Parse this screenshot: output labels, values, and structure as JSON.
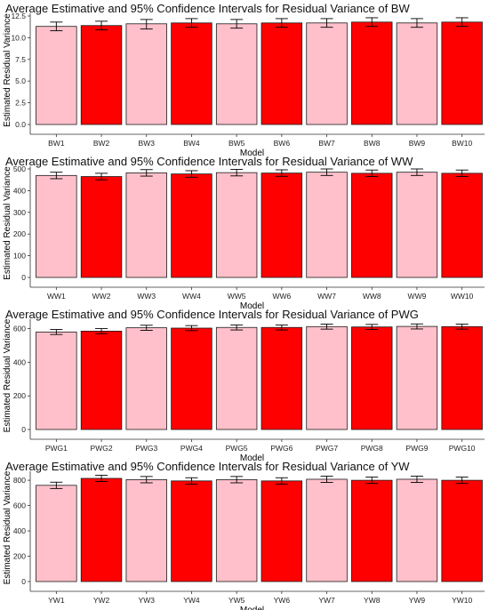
{
  "chart_data": [
    {
      "type": "bar",
      "title": "Average Estimative and 95% Confidence Intervals for Residual Variance of BW",
      "xlabel": "Model",
      "ylabel": "Estimated Residual Variance",
      "categories": [
        "BW1",
        "BW2",
        "BW3",
        "BW4",
        "BW5",
        "BW6",
        "BW7",
        "BW8",
        "BW9",
        "BW10"
      ],
      "values": [
        11.3,
        11.4,
        11.6,
        11.7,
        11.6,
        11.7,
        11.7,
        11.8,
        11.7,
        11.8
      ],
      "ci_lower": [
        10.8,
        10.9,
        11.0,
        11.2,
        11.1,
        11.2,
        11.2,
        11.3,
        11.2,
        11.3
      ],
      "ci_upper": [
        11.8,
        11.9,
        12.1,
        12.2,
        12.1,
        12.2,
        12.2,
        12.3,
        12.2,
        12.3
      ],
      "bar_colors": [
        "#FFC0CB",
        "#FF0000",
        "#FFC0CB",
        "#FF0000",
        "#FFC0CB",
        "#FF0000",
        "#FFC0CB",
        "#FF0000",
        "#FFC0CB",
        "#FF0000"
      ],
      "ylim": [
        0,
        12.5
      ],
      "yticks": [
        0,
        2.5,
        5.0,
        7.5,
        10.0,
        12.5
      ],
      "ytick_labels": [
        "0.0",
        "2.5",
        "5.0",
        "7.5",
        "10.0",
        "12.5"
      ],
      "grid": false,
      "legend": "none"
    },
    {
      "type": "bar",
      "title": "Average Estimative and 95% Confidence Intervals for Residual Variance of WW",
      "xlabel": "Model",
      "ylabel": "Estimated Residual Variance",
      "categories": [
        "WW1",
        "WW2",
        "WW3",
        "WW4",
        "WW5",
        "WW6",
        "WW7",
        "WW8",
        "WW9",
        "WW10"
      ],
      "values": [
        470,
        465,
        482,
        477,
        483,
        481,
        485,
        480,
        485,
        480
      ],
      "ci_lower": [
        455,
        450,
        467,
        462,
        468,
        466,
        470,
        465,
        470,
        465
      ],
      "ci_upper": [
        485,
        480,
        497,
        492,
        498,
        496,
        500,
        495,
        500,
        495
      ],
      "bar_colors": [
        "#FFC0CB",
        "#FF0000",
        "#FFC0CB",
        "#FF0000",
        "#FFC0CB",
        "#FF0000",
        "#FFC0CB",
        "#FF0000",
        "#FFC0CB",
        "#FF0000"
      ],
      "ylim": [
        0,
        500
      ],
      "yticks": [
        0,
        100,
        200,
        300,
        400,
        500
      ],
      "ytick_labels": [
        "0",
        "100",
        "200",
        "300",
        "400",
        "500"
      ],
      "grid": false,
      "legend": "none"
    },
    {
      "type": "bar",
      "title": "Average Estimative and 95% Confidence Intervals for Residual Variance of PWG",
      "xlabel": "Model",
      "ylabel": "Estimated Residual Variance",
      "categories": [
        "PWG1",
        "PWG2",
        "PWG3",
        "PWG4",
        "PWG5",
        "PWG6",
        "PWG7",
        "PWG8",
        "PWG9",
        "PWG10"
      ],
      "values": [
        580,
        585,
        605,
        603,
        607,
        607,
        612,
        610,
        613,
        612
      ],
      "ci_lower": [
        565,
        570,
        590,
        588,
        592,
        592,
        597,
        595,
        598,
        597
      ],
      "ci_upper": [
        595,
        600,
        620,
        618,
        622,
        622,
        627,
        625,
        628,
        627
      ],
      "bar_colors": [
        "#FFC0CB",
        "#FF0000",
        "#FFC0CB",
        "#FF0000",
        "#FFC0CB",
        "#FF0000",
        "#FFC0CB",
        "#FF0000",
        "#FFC0CB",
        "#FF0000"
      ],
      "ylim": [
        0,
        640
      ],
      "yticks": [
        0,
        200,
        400,
        600
      ],
      "ytick_labels": [
        "0",
        "200",
        "400",
        "600"
      ],
      "grid": false,
      "legend": "none"
    },
    {
      "type": "bar",
      "title": "Average Estimative and 95% Confidence Intervals for Residual Variance of YW",
      "xlabel": "Model",
      "ylabel": "Estimated Residual Variance",
      "categories": [
        "YW1",
        "YW2",
        "YW3",
        "YW4",
        "YW5",
        "YW6",
        "YW7",
        "YW8",
        "YW9",
        "YW10"
      ],
      "values": [
        760,
        815,
        805,
        795,
        805,
        795,
        808,
        800,
        808,
        800
      ],
      "ci_lower": [
        735,
        790,
        780,
        770,
        780,
        770,
        783,
        775,
        783,
        775
      ],
      "ci_upper": [
        785,
        840,
        830,
        820,
        830,
        820,
        833,
        825,
        833,
        825
      ],
      "bar_colors": [
        "#FFC0CB",
        "#FF0000",
        "#FFC0CB",
        "#FF0000",
        "#FFC0CB",
        "#FF0000",
        "#FFC0CB",
        "#FF0000",
        "#FFC0CB",
        "#FF0000"
      ],
      "ylim": [
        0,
        850
      ],
      "yticks": [
        0,
        200,
        400,
        600,
        800
      ],
      "ytick_labels": [
        "0",
        "200",
        "400",
        "600",
        "800"
      ],
      "grid": false,
      "legend": "none"
    }
  ]
}
